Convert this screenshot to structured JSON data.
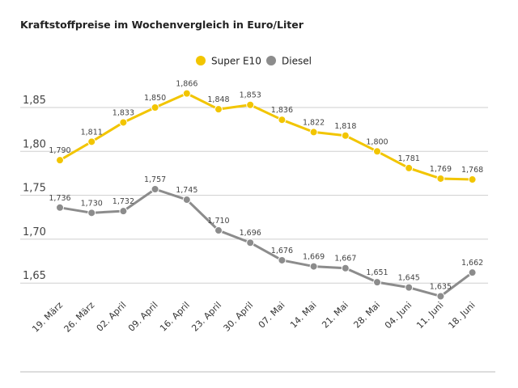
{
  "chart_data": {
    "type": "line",
    "title": "Kraftstoffpreise im Wochenvergleich in Euro/Liter",
    "categories": [
      "19. März",
      "26. März",
      "02. April",
      "09. April",
      "16. April",
      "23. April",
      "30. April",
      "07. Mai",
      "14. Mai",
      "21. Mai",
      "28. Mai",
      "04. Juni",
      "11. Juni",
      "18. Juni"
    ],
    "series": [
      {
        "name": "Super E10",
        "color": "#f2c500",
        "values": [
          1.79,
          1.811,
          1.833,
          1.85,
          1.866,
          1.848,
          1.853,
          1.836,
          1.822,
          1.818,
          1.8,
          1.781,
          1.769,
          1.768
        ],
        "labels": [
          "1,790",
          "1,811",
          "1,833",
          "1,850",
          "1,866",
          "1,848",
          "1,853",
          "1,836",
          "1,822",
          "1,818",
          "1,800",
          "1,781",
          "1,769",
          "1,768"
        ]
      },
      {
        "name": "Diesel",
        "color": "#8c8c8c",
        "values": [
          1.736,
          1.73,
          1.732,
          1.757,
          1.745,
          1.71,
          1.696,
          1.676,
          1.669,
          1.667,
          1.651,
          1.645,
          1.635,
          1.662
        ],
        "labels": [
          "1,736",
          "1,730",
          "1,732",
          "1,757",
          "1,745",
          "1,710",
          "1,696",
          "1,676",
          "1,669",
          "1,667",
          "1,651",
          "1,645",
          "1,635",
          "1,662"
        ]
      }
    ],
    "yticks": [
      1.65,
      1.7,
      1.75,
      1.8,
      1.85
    ],
    "ytick_labels": [
      "1,65",
      "1,70",
      "1,75",
      "1,80",
      "1,85"
    ],
    "ylim": [
      1.62,
      1.88
    ],
    "grid": true,
    "legend": "top-center"
  }
}
